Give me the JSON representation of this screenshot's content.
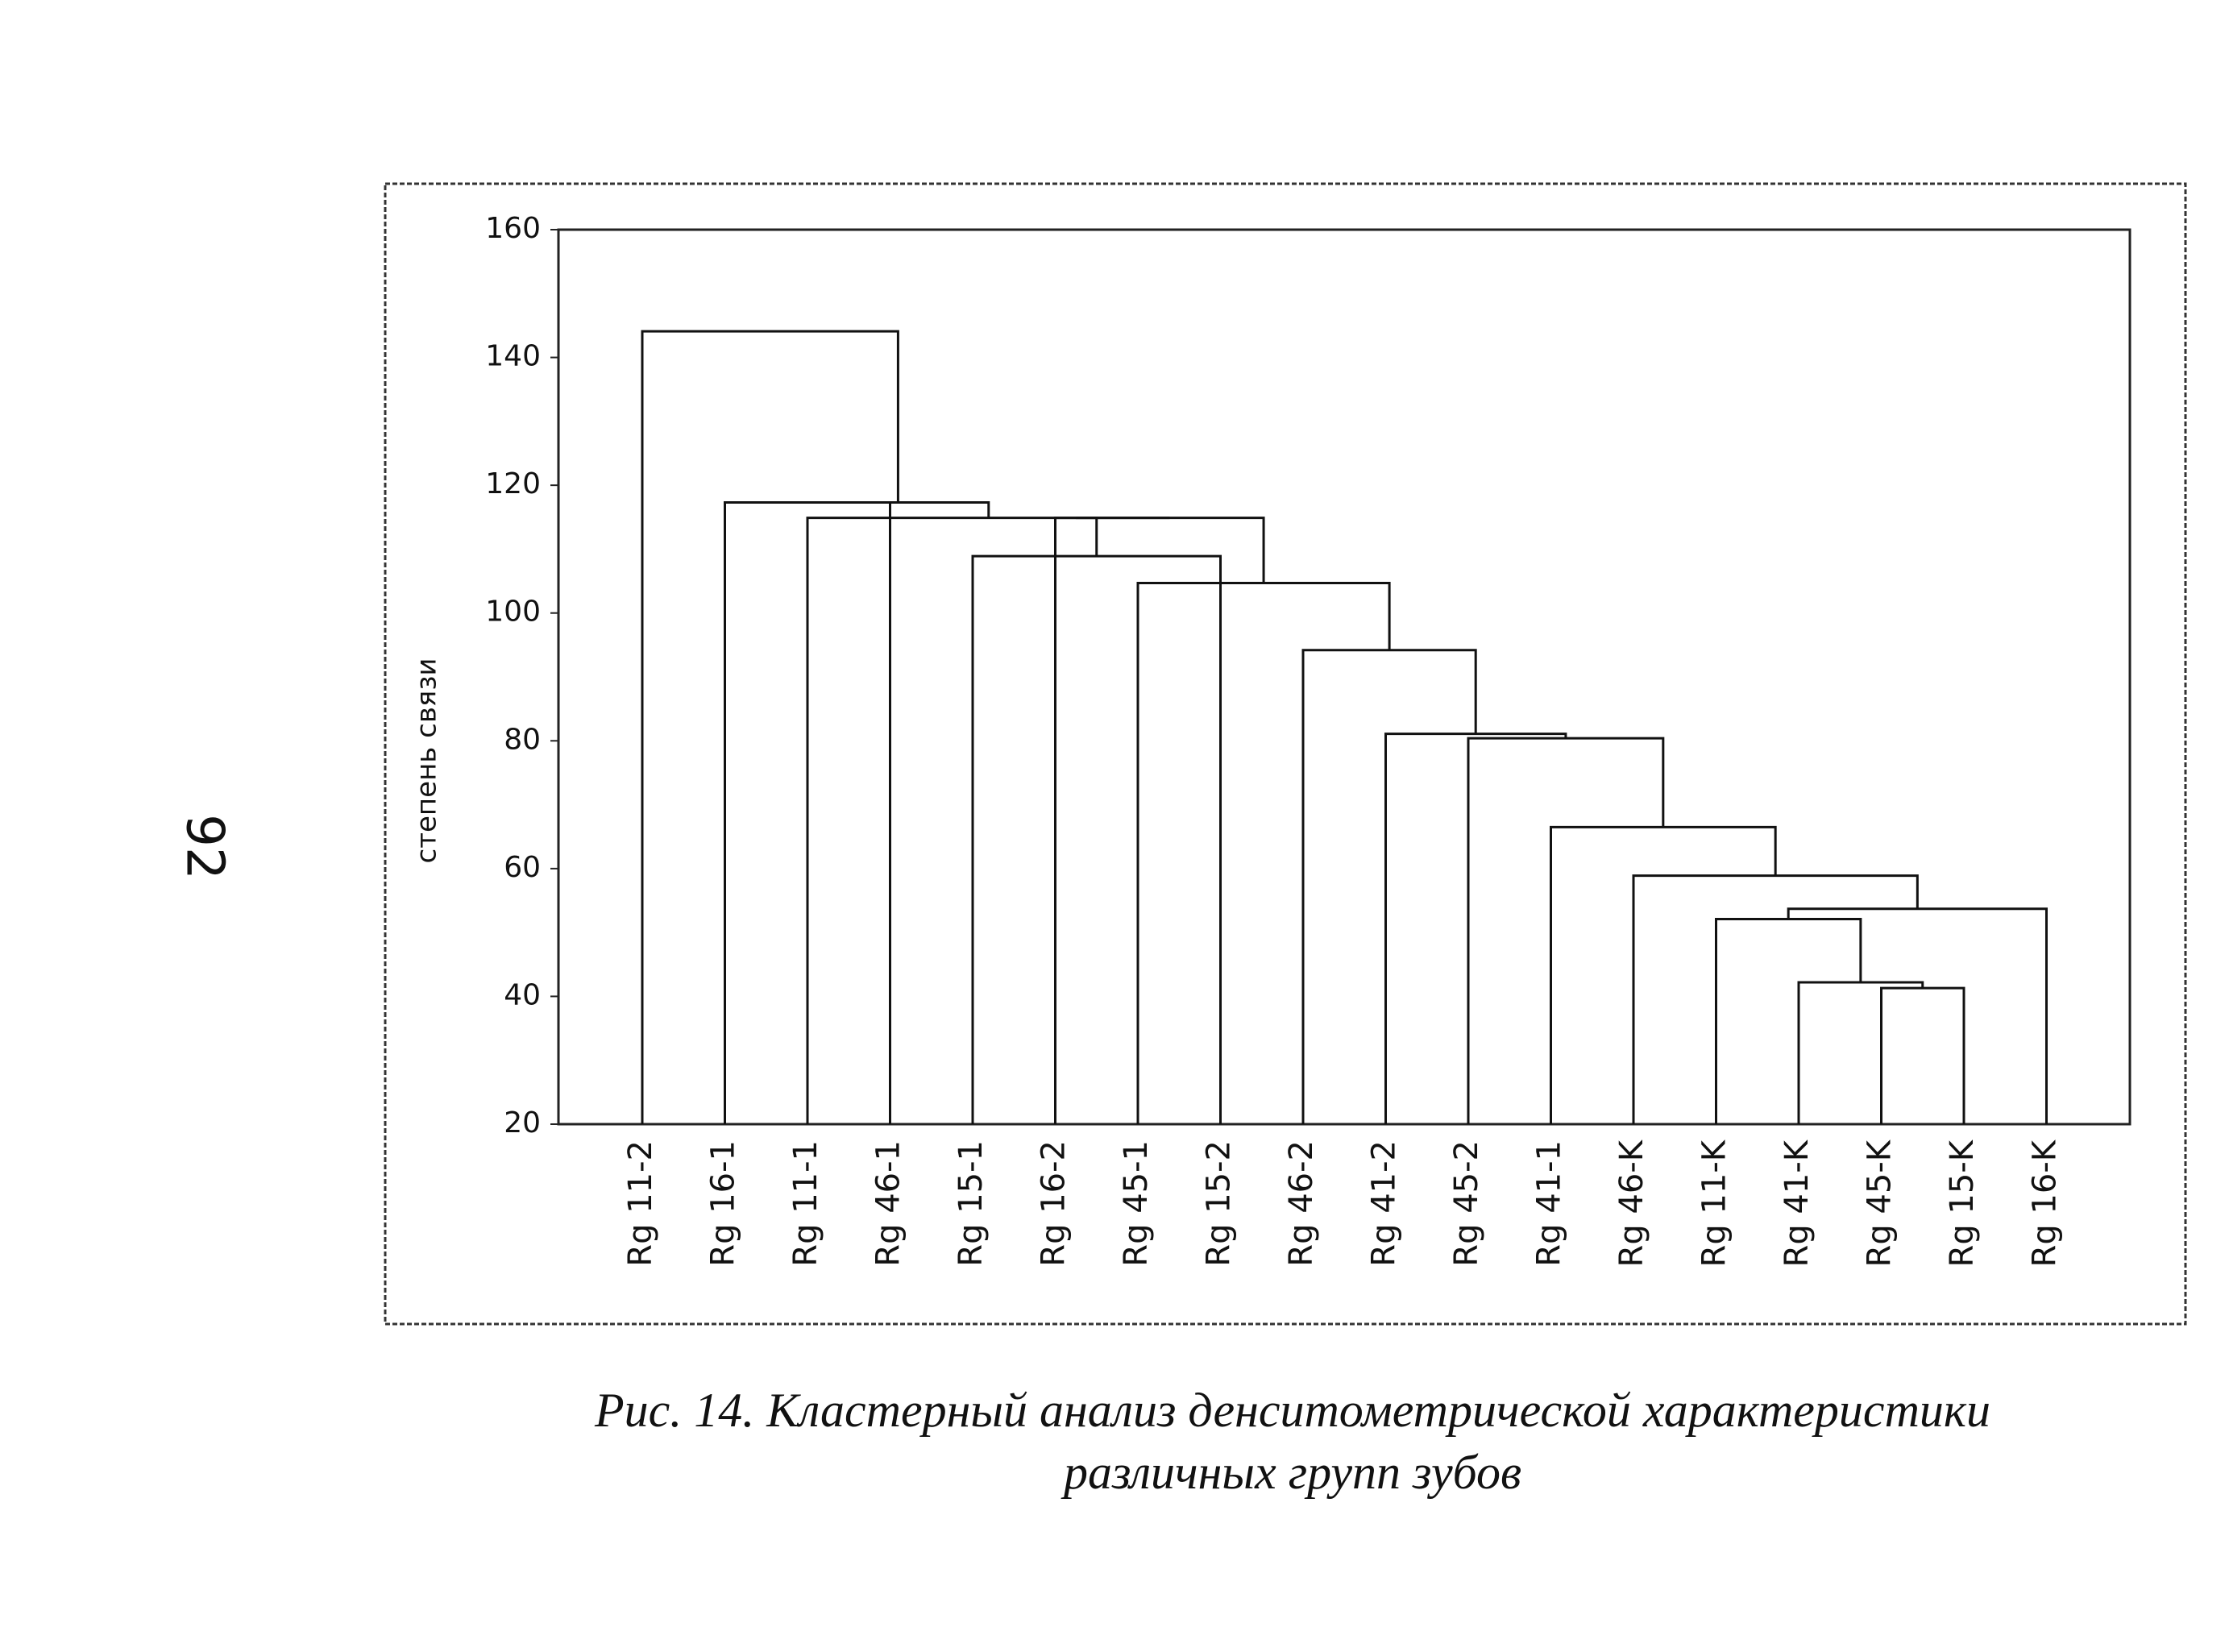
{
  "page_number": "92",
  "chart_data": {
    "type": "dendrogram",
    "ylabel": "степень связи",
    "categories": [
      "Rg 11-2",
      "Rg 16-1",
      "Rg 11-1",
      "Rg 46-1",
      "Rg 15-1",
      "Rg 16-2",
      "Rg 45-1",
      "Rg 15-2",
      "Rg 46-2",
      "Rg 41-2",
      "Rg 45-2",
      "Rg 41-1",
      "Rg 46-K",
      "Rg 11-K",
      "Rg 41-K",
      "Rg 45-K",
      "Rg 15-K",
      "Rg 16-K"
    ],
    "merges": [
      {
        "children": [
          15,
          16
        ],
        "height": 41.3
      },
      {
        "children": [
          14,
          18
        ],
        "height": 42.2
      },
      {
        "children": [
          13,
          19
        ],
        "height": 52.1
      },
      {
        "children": [
          20,
          17
        ],
        "height": 53.7
      },
      {
        "children": [
          12,
          21
        ],
        "height": 58.9
      },
      {
        "children": [
          11,
          22
        ],
        "height": 66.5
      },
      {
        "children": [
          10,
          23
        ],
        "height": 80.4
      },
      {
        "children": [
          9,
          24
        ],
        "height": 81.1
      },
      {
        "children": [
          8,
          25
        ],
        "height": 94.2
      },
      {
        "children": [
          6,
          26
        ],
        "height": 104.7
      },
      {
        "children": [
          4,
          7
        ],
        "height": 108.9
      },
      {
        "children": [
          5,
          28
        ],
        "height": 114.9
      },
      {
        "children": [
          29,
          27
        ],
        "height": 114.9
      },
      {
        "children": [
          2,
          30
        ],
        "height": 114.9
      },
      {
        "children": [
          1,
          3
        ],
        "height": 117.3
      },
      {
        "children": [
          32,
          31
        ],
        "height": 117.3
      },
      {
        "children": [
          0,
          33
        ],
        "height": 144.1
      }
    ],
    "color": "#111111",
    "ylim": [
      20,
      160
    ],
    "yticks": [
      20,
      40,
      60,
      80,
      100,
      120,
      140,
      160
    ]
  },
  "caption": [
    "Рис. 14.  Кластерный анализ денситометрической характеристики",
    "различных групп зубов"
  ]
}
